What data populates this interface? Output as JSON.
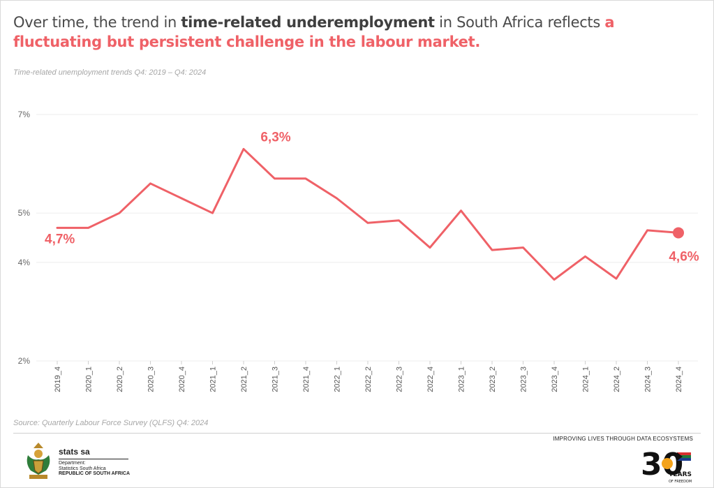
{
  "headline": {
    "part1": "Over time, the trend in ",
    "bold": "time-related underemployment",
    "part2": " in South Africa reflects ",
    "accent": "a fluctuating but persistent challenge in the labour market."
  },
  "subtitle": "Time-related unemployment trends Q4: 2019 – Q4: 2024",
  "source": "Source: Quarterly Labour Force Survey (QLFS)  Q4: 2024",
  "footer": {
    "brand_name": "stats sa",
    "dept_line1": "Department:",
    "dept_line2": "Statistics South Africa",
    "republic": "REPUBLIC OF SOUTH AFRICA",
    "tagline": "IMPROVING LIVES THROUGH DATA ECOSYSTEMS",
    "years_number": "30",
    "years_word": "YEARS",
    "years_sub": "OF FREEDOM"
  },
  "colors": {
    "line": "#ef6167",
    "text": "#4a4a4a",
    "grid": "#eeeeee"
  },
  "chart_data": {
    "type": "line",
    "title": "Time-related unemployment trends Q4: 2019 – Q4: 2024",
    "xlabel": "",
    "ylabel": "",
    "categories": [
      "2019_4",
      "2020_1",
      "2020_2",
      "2020_3",
      "2020_4",
      "2021_1",
      "2021_2",
      "2021_3",
      "2021_4",
      "2022_1",
      "2022_2",
      "2022_3",
      "2022_4",
      "2023_1",
      "2023_2",
      "2023_3",
      "2023_4",
      "2024_1",
      "2024_2",
      "2024_3",
      "2024_4"
    ],
    "series": [
      {
        "name": "Time-related underemployment (%)",
        "values": [
          4.7,
          4.7,
          5.0,
          5.6,
          5.3,
          5.0,
          6.3,
          5.7,
          5.7,
          5.3,
          4.8,
          4.85,
          4.3,
          5.05,
          4.25,
          4.3,
          3.65,
          4.12,
          3.67,
          4.65,
          4.6
        ]
      }
    ],
    "yticks": [
      2,
      4,
      5,
      7
    ],
    "ytick_labels": [
      "2%",
      "4%",
      "5%",
      "7%"
    ],
    "ylim": [
      2,
      7
    ],
    "grid": true,
    "annotations": [
      {
        "index": 0,
        "text": "4,7%"
      },
      {
        "index": 6,
        "text": "6,3%"
      },
      {
        "index": 20,
        "text": "4,6%"
      }
    ]
  }
}
